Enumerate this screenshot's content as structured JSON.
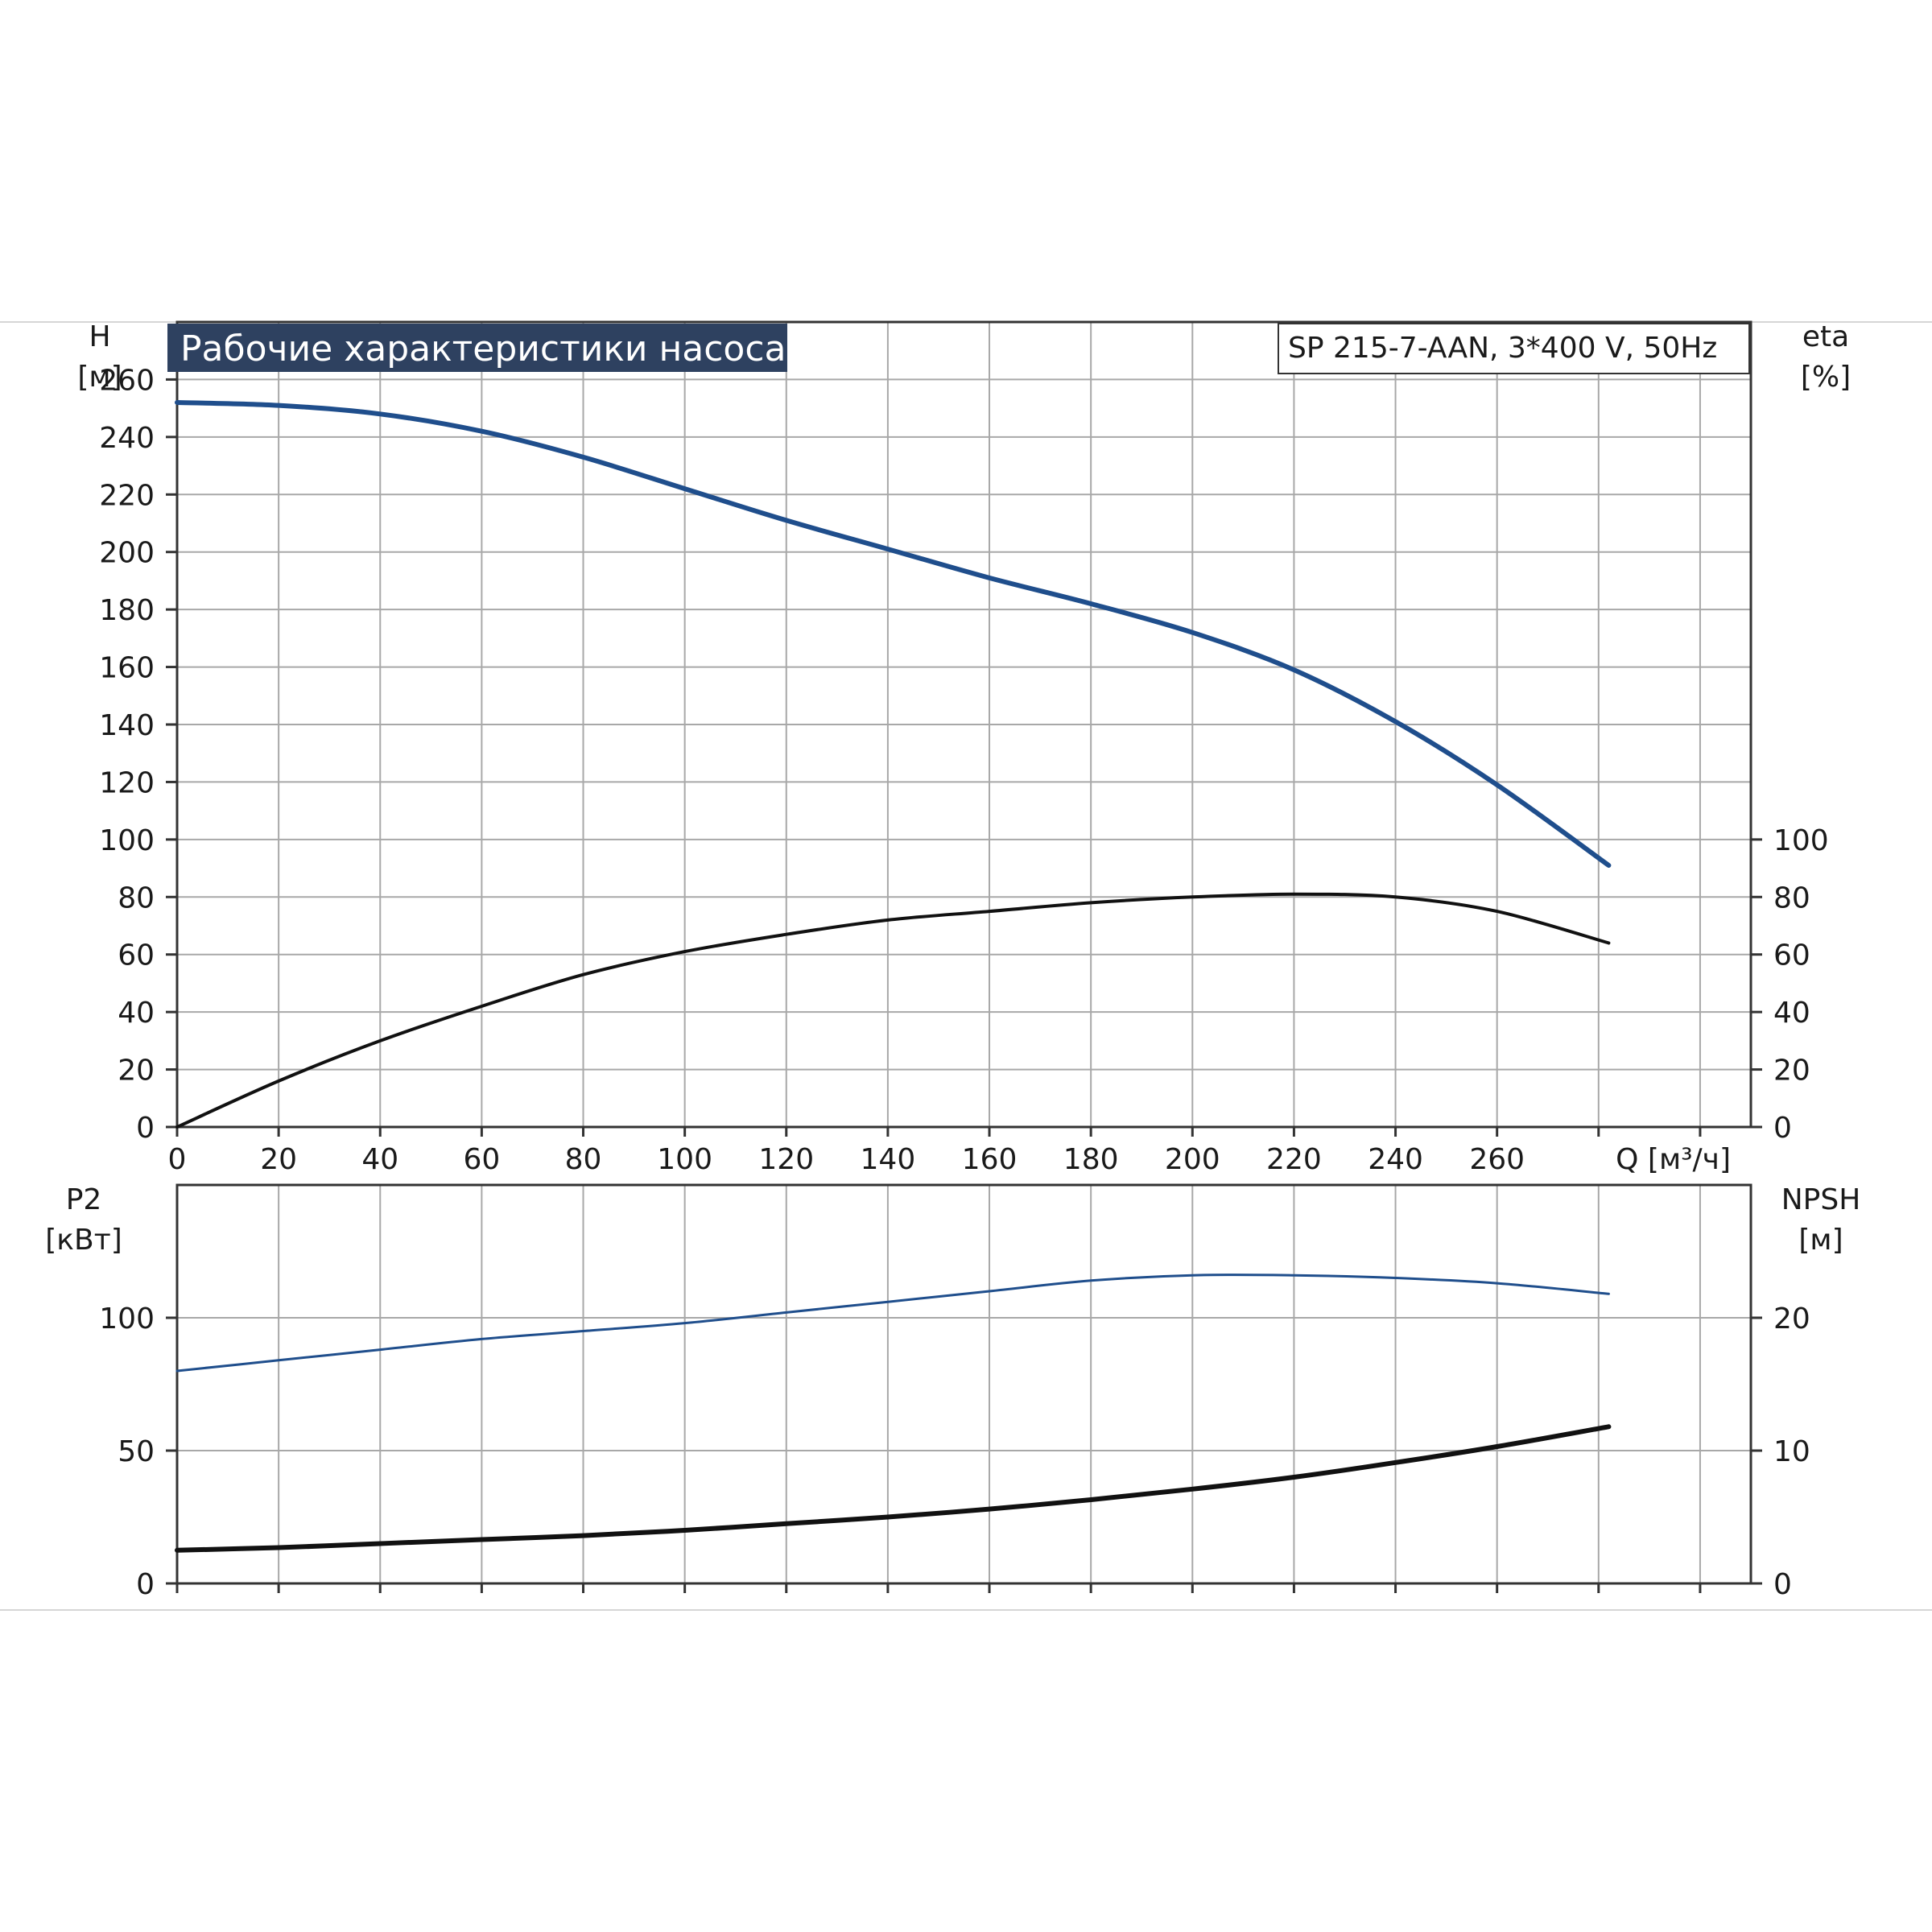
{
  "chart_data": [
    {
      "type": "line",
      "title": "Рабочие характеристики насоса",
      "subtitle": "SP 215-7-AAN, 3*400 V, 50Hz",
      "x": {
        "label": "Q [м³/ч]",
        "range": [
          0,
          310
        ],
        "ticks": [
          0,
          20,
          40,
          60,
          80,
          100,
          120,
          140,
          160,
          180,
          200,
          220,
          240,
          260
        ]
      },
      "y_left": {
        "label_line1": "H",
        "label_line2": "[м]",
        "range": [
          0,
          280
        ],
        "ticks": [
          0,
          20,
          40,
          60,
          80,
          100,
          120,
          140,
          160,
          180,
          200,
          220,
          240,
          260
        ]
      },
      "y_right": {
        "label_line1": "eta",
        "label_line2": "[%]",
        "range": [
          0,
          280
        ],
        "ticks": [
          0,
          20,
          40,
          60,
          80,
          100
        ]
      },
      "grid": true,
      "series": [
        {
          "axis": "left",
          "color": "#1f4e8c",
          "points": [
            [
              0,
              252
            ],
            [
              20,
              251
            ],
            [
              40,
              248
            ],
            [
              60,
              242
            ],
            [
              80,
              233
            ],
            [
              100,
              222
            ],
            [
              120,
              211
            ],
            [
              140,
              201
            ],
            [
              160,
              191
            ],
            [
              180,
              182
            ],
            [
              200,
              172
            ],
            [
              220,
              159
            ],
            [
              240,
              141
            ],
            [
              260,
              119
            ],
            [
              282,
              91
            ]
          ]
        },
        {
          "axis": "right",
          "color": "#111111",
          "points": [
            [
              0,
              0
            ],
            [
              20,
              16
            ],
            [
              40,
              30
            ],
            [
              60,
              42
            ],
            [
              80,
              53
            ],
            [
              100,
              61
            ],
            [
              120,
              67
            ],
            [
              140,
              72
            ],
            [
              160,
              75
            ],
            [
              180,
              78
            ],
            [
              200,
              80
            ],
            [
              220,
              81
            ],
            [
              240,
              80
            ],
            [
              260,
              75
            ],
            [
              282,
              64
            ]
          ]
        }
      ]
    },
    {
      "type": "line",
      "x": {
        "range": [
          0,
          310
        ],
        "ticks": [
          0,
          20,
          40,
          60,
          80,
          100,
          120,
          140,
          160,
          180,
          200,
          220,
          240,
          260
        ]
      },
      "y_left": {
        "label_line1": "P2",
        "label_line2": "[кВт]",
        "range": [
          0,
          150
        ],
        "ticks": [
          0,
          50,
          100
        ]
      },
      "y_right": {
        "label_line1": "NPSH",
        "label_line2": "[м]",
        "range": [
          0,
          30
        ],
        "ticks": [
          0,
          10,
          20
        ]
      },
      "grid": true,
      "series": [
        {
          "axis": "left",
          "color": "#1f4e8c",
          "points": [
            [
              0,
              80
            ],
            [
              20,
              84
            ],
            [
              40,
              88
            ],
            [
              60,
              92
            ],
            [
              80,
              95
            ],
            [
              100,
              98
            ],
            [
              120,
              102
            ],
            [
              140,
              106
            ],
            [
              160,
              110
            ],
            [
              180,
              114
            ],
            [
              200,
              116
            ],
            [
              220,
              116
            ],
            [
              240,
              115
            ],
            [
              260,
              113
            ],
            [
              282,
              109
            ]
          ]
        },
        {
          "axis": "right",
          "color": "#111111",
          "points": [
            [
              0,
              2.5
            ],
            [
              20,
              2.7
            ],
            [
              40,
              3.0
            ],
            [
              60,
              3.3
            ],
            [
              80,
              3.6
            ],
            [
              100,
              4.0
            ],
            [
              120,
              4.5
            ],
            [
              140,
              5.0
            ],
            [
              160,
              5.6
            ],
            [
              180,
              6.3
            ],
            [
              200,
              7.1
            ],
            [
              220,
              8.0
            ],
            [
              240,
              9.1
            ],
            [
              260,
              10.3
            ],
            [
              282,
              11.8
            ]
          ]
        }
      ]
    }
  ]
}
